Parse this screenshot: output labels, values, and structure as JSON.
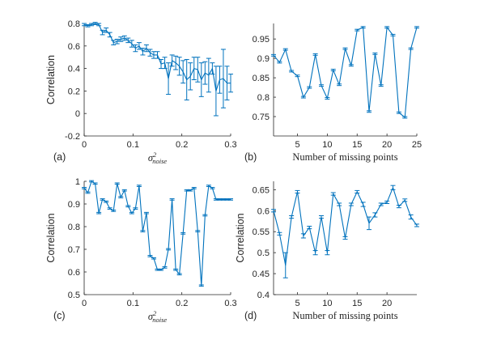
{
  "colors": {
    "line": "#0072BD",
    "axis": "#262626",
    "background": "#ffffff"
  },
  "chart_data": [
    {
      "panel_label": "(a)",
      "type": "line",
      "xlabel": "σ²noise",
      "ylabel": "Correlation",
      "xlim": [
        0,
        0.3
      ],
      "ylim": [
        -0.2,
        0.8
      ],
      "xticks": [
        0,
        0.1,
        0.2,
        0.3
      ],
      "xtick_labels": [
        "0",
        "0.1",
        "0.2",
        "0.3"
      ],
      "yticks": [
        -0.2,
        0,
        0.2,
        0.4,
        0.6,
        0.8
      ],
      "ytick_labels": [
        "-0.2",
        "0",
        "0.2",
        "0.4",
        "0.6",
        "0.8"
      ],
      "grid": false,
      "series": [
        {
          "x": [
            0,
            0.0075,
            0.015,
            0.0225,
            0.03,
            0.0375,
            0.045,
            0.0525,
            0.06,
            0.0675,
            0.075,
            0.0825,
            0.09,
            0.0975,
            0.105,
            0.1125,
            0.12,
            0.1275,
            0.135,
            0.1425,
            0.15,
            0.1575,
            0.165,
            0.1725,
            0.18,
            0.1875,
            0.195,
            0.2025,
            0.21,
            0.2175,
            0.225,
            0.2325,
            0.24,
            0.2475,
            0.255,
            0.2625,
            0.27,
            0.2775,
            0.285,
            0.2925,
            0.3
          ],
          "values": [
            0.79,
            0.78,
            0.79,
            0.8,
            0.79,
            0.72,
            0.74,
            0.7,
            0.63,
            0.64,
            0.66,
            0.67,
            0.65,
            0.62,
            0.58,
            0.6,
            0.55,
            0.58,
            0.54,
            0.52,
            0.52,
            0.44,
            0.45,
            0.31,
            0.47,
            0.45,
            0.42,
            0.37,
            0.3,
            0.33,
            0.4,
            0.39,
            0.3,
            0.36,
            0.34,
            0.4,
            0.2,
            0.3,
            0.31,
            0.27,
            0.27
          ],
          "error": [
            0.01,
            0.01,
            0.01,
            0.01,
            0.01,
            0.02,
            0.02,
            0.02,
            0.02,
            0.02,
            0.02,
            0.02,
            0.02,
            0.03,
            0.03,
            0.03,
            0.03,
            0.03,
            0.03,
            0.03,
            0.03,
            0.04,
            0.05,
            0.14,
            0.05,
            0.06,
            0.08,
            0.1,
            0.18,
            0.12,
            0.1,
            0.11,
            0.15,
            0.1,
            0.15,
            0.05,
            0.22,
            0.12,
            0.26,
            0.15,
            0.08
          ]
        }
      ]
    },
    {
      "panel_label": "(b)",
      "type": "line",
      "xlabel": "Number of missing points",
      "ylabel": "",
      "xlim": [
        1,
        25
      ],
      "ylim": [
        0.7,
        0.99
      ],
      "xticks": [
        5,
        10,
        15,
        20,
        25
      ],
      "xtick_labels": [
        "5",
        "10",
        "15",
        "20",
        "25"
      ],
      "yticks": [
        0.75,
        0.8,
        0.85,
        0.9,
        0.95
      ],
      "ytick_labels": [
        "0.75",
        "0.8",
        "0.85",
        "0.9",
        "0.95"
      ],
      "grid": false,
      "series": [
        {
          "x": [
            1,
            2,
            3,
            4,
            5,
            6,
            7,
            8,
            9,
            10,
            11,
            12,
            13,
            14,
            15,
            16,
            17,
            18,
            19,
            20,
            21,
            22,
            23,
            24,
            25
          ],
          "values": [
            0.908,
            0.89,
            0.923,
            0.867,
            0.855,
            0.8,
            0.825,
            0.91,
            0.83,
            0.797,
            0.87,
            0.832,
            0.925,
            0.882,
            0.973,
            0.98,
            0.763,
            0.912,
            0.83,
            0.98,
            0.96,
            0.76,
            0.748,
            0.925,
            0.98
          ],
          "error": [
            0.002,
            0.002,
            0.002,
            0.002,
            0.002,
            0.002,
            0.002,
            0.002,
            0.002,
            0.002,
            0.002,
            0.002,
            0.002,
            0.002,
            0.002,
            0.002,
            0.002,
            0.002,
            0.002,
            0.002,
            0.002,
            0.002,
            0.002,
            0.002,
            0.002
          ]
        }
      ]
    },
    {
      "panel_label": "(c)",
      "type": "line",
      "xlabel": "σ²noise",
      "ylabel": "Correlation",
      "xlim": [
        0,
        0.3
      ],
      "ylim": [
        0.5,
        1.0
      ],
      "xticks": [
        0,
        0.1,
        0.2,
        0.3
      ],
      "xtick_labels": [
        "0",
        "0.1",
        "0.2",
        "0.3"
      ],
      "yticks": [
        0.5,
        0.6,
        0.7,
        0.8,
        0.9,
        1.0
      ],
      "ytick_labels": [
        "0.5",
        "0.6",
        "0.7",
        "0.8",
        "0.9",
        "1"
      ],
      "grid": false,
      "series": [
        {
          "x": [
            0,
            0.0075,
            0.015,
            0.0225,
            0.03,
            0.0375,
            0.045,
            0.0525,
            0.06,
            0.0675,
            0.075,
            0.0825,
            0.09,
            0.0975,
            0.105,
            0.1125,
            0.12,
            0.1275,
            0.135,
            0.1425,
            0.15,
            0.1575,
            0.165,
            0.1725,
            0.18,
            0.1875,
            0.195,
            0.2025,
            0.21,
            0.2175,
            0.225,
            0.2325,
            0.24,
            0.2475,
            0.255,
            0.2625,
            0.27,
            0.2775,
            0.285,
            0.2925,
            0.3
          ],
          "values": [
            0.97,
            0.95,
            1.0,
            0.99,
            0.86,
            0.92,
            0.91,
            0.88,
            0.87,
            0.99,
            0.93,
            0.96,
            0.89,
            0.86,
            0.88,
            0.98,
            0.78,
            0.86,
            0.67,
            0.66,
            0.61,
            0.61,
            0.62,
            0.7,
            0.92,
            0.61,
            0.59,
            0.77,
            0.96,
            0.96,
            0.97,
            0.78,
            0.54,
            0.85,
            0.98,
            0.97,
            0.92,
            0.92,
            0.92,
            0.92,
            0.92
          ],
          "error": [
            0.003,
            0.003,
            0.003,
            0.003,
            0.003,
            0.003,
            0.003,
            0.003,
            0.003,
            0.003,
            0.003,
            0.003,
            0.003,
            0.003,
            0.003,
            0.003,
            0.003,
            0.003,
            0.003,
            0.003,
            0.003,
            0.003,
            0.003,
            0.003,
            0.003,
            0.003,
            0.003,
            0.003,
            0.003,
            0.003,
            0.003,
            0.003,
            0.003,
            0.003,
            0.003,
            0.003,
            0.003,
            0.003,
            0.003,
            0.003,
            0.003
          ]
        }
      ]
    },
    {
      "panel_label": "(d)",
      "type": "line",
      "xlabel": "Number of missing points",
      "ylabel": "Correlation",
      "xlim": [
        1,
        25
      ],
      "ylim": [
        0.4,
        0.67
      ],
      "xticks": [
        5,
        10,
        15,
        20
      ],
      "xtick_labels": [
        "5",
        "10",
        "15",
        "20"
      ],
      "yticks": [
        0.4,
        0.45,
        0.5,
        0.55,
        0.6,
        0.65
      ],
      "ytick_labels": [
        "0.4",
        "0.45",
        "0.5",
        "0.55",
        "0.6",
        "0.65"
      ],
      "grid": false,
      "series": [
        {
          "x": [
            1,
            2,
            3,
            4,
            5,
            6,
            7,
            8,
            9,
            10,
            11,
            12,
            13,
            14,
            15,
            16,
            17,
            18,
            19,
            20,
            21,
            22,
            23,
            24,
            25
          ],
          "values": [
            0.6,
            0.545,
            0.47,
            0.585,
            0.645,
            0.54,
            0.56,
            0.5,
            0.585,
            0.5,
            0.64,
            0.615,
            0.535,
            0.615,
            0.645,
            0.615,
            0.57,
            0.59,
            0.615,
            0.62,
            0.655,
            0.61,
            0.625,
            0.585,
            0.565
          ],
          "error": [
            0.003,
            0.003,
            0.03,
            0.003,
            0.003,
            0.005,
            0.003,
            0.005,
            0.003,
            0.005,
            0.003,
            0.003,
            0.003,
            0.003,
            0.003,
            0.005,
            0.015,
            0.005,
            0.003,
            0.003,
            0.005,
            0.003,
            0.003,
            0.005,
            0.003
          ]
        }
      ]
    }
  ]
}
